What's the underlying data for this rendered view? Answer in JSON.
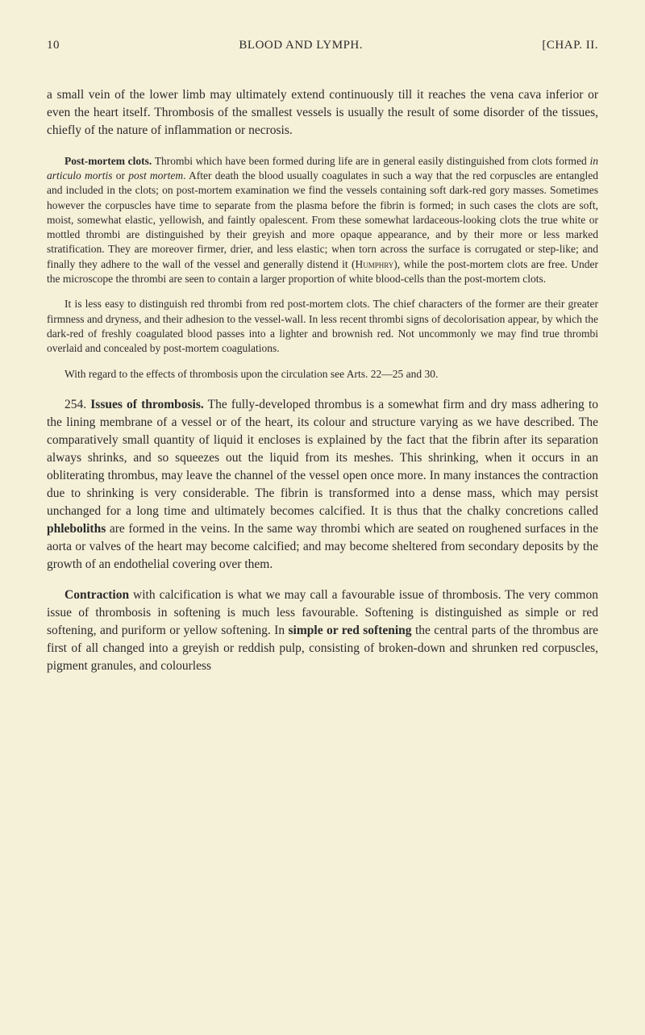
{
  "header": {
    "page_number": "10",
    "title": "BLOOD AND LYMPH.",
    "chapter": "[CHAP. II."
  },
  "paragraphs": {
    "p1": "a small vein of the lower limb may ultimately extend continuously till it reaches the vena cava inferior or even the heart itself. Thrombosis of the smallest vessels is usually the result of some disorder of the tissues, chiefly of the nature of inflammation or necrosis.",
    "p2_bold": "Post-mortem clots.",
    "p2_rest": " Thrombi which have been formed during life are in general easily distinguished from clots formed ",
    "p2_italic1": "in articulo mortis",
    "p2_mid": " or ",
    "p2_italic2": "post mortem",
    "p2_end": ". After death the blood usually coagulates in such a way that the red corpuscles are entangled and included in the clots; on post-mortem examination we find the vessels containing soft dark-red gory masses. Sometimes however the corpuscles have time to separate from the plasma before the fibrin is formed; in such cases the clots are soft, moist, somewhat elastic, yellowish, and faintly opalescent. From these somewhat lardaceous-looking clots the true white or mottled thrombi are distinguished by their greyish and more opaque appearance, and by their more or less marked stratification. They are moreover firmer, drier, and less elastic; when torn across the surface is corrugated or step-like; and finally they adhere to the wall of the vessel and generally distend it (",
    "p2_smallcaps": "Humphry",
    "p2_final": "), while the post-mortem clots are free. Under the microscope the thrombi are seen to contain a larger proportion of white blood-cells than the post-mortem clots.",
    "p3": "It is less easy to distinguish red thrombi from red post-mortem clots. The chief characters of the former are their greater firmness and dryness, and their adhesion to the vessel-wall. In less recent thrombi signs of decolorisation appear, by which the dark-red of freshly coagulated blood passes into a lighter and brownish red. Not uncommonly we may find true thrombi overlaid and concealed by post-mortem coagulations.",
    "p4": "With regard to the effects of thrombosis upon the circulation see Arts. 22—25 and 30.",
    "p5_num": "254. ",
    "p5_bold": "Issues of thrombosis.",
    "p5_rest": " The fully-developed thrombus is a somewhat firm and dry mass adhering to the lining membrane of a vessel or of the heart, its colour and structure varying as we have described. The comparatively small quantity of liquid it encloses is explained by the fact that the fibrin after its separation always shrinks, and so squeezes out the liquid from its meshes. This shrinking, when it occurs in an obliterating thrombus, may leave the channel of the vessel open once more. In many instances the contraction due to shrinking is very considerable. The fibrin is transformed into a dense mass, which may persist unchanged for a long time and ultimately becomes calcified. It is thus that the chalky concretions called ",
    "p5_bold2": "phleboliths",
    "p5_rest2": " are formed in the veins. In the same way thrombi which are seated on roughened surfaces in the aorta or valves of the heart may become calcified; and may become sheltered from secondary deposits by the growth of an endothelial covering over them.",
    "p6_bold": "Contraction",
    "p6_rest": " with calcification is what we may call a favourable issue of thrombosis. The very common issue of thrombosis in softening is much less favourable. Softening is distinguished as simple or red softening, and puriform or yellow softening. In ",
    "p6_bold2": "simple or red softening",
    "p6_rest2": " the central parts of the thrombus are first of all changed into a greyish or reddish pulp, consisting of broken-down and shrunken red corpuscles, pigment granules, and colourless"
  },
  "colors": {
    "background": "#f5f0d8",
    "text": "#2a2a2a"
  },
  "typography": {
    "body_fontsize": 15.5,
    "small_fontsize": 13.5,
    "header_fontsize": 15
  }
}
